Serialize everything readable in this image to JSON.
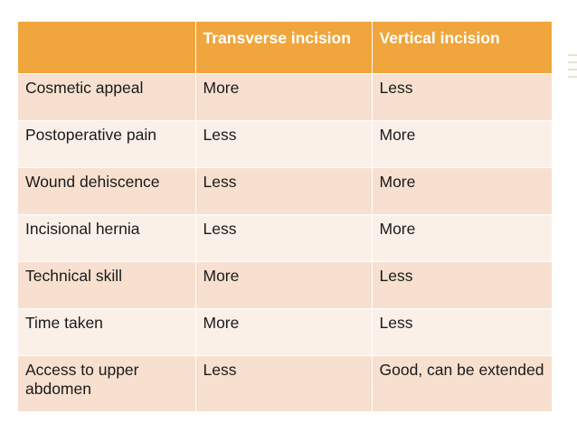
{
  "table": {
    "headers": [
      "",
      "Transverse incision",
      "Vertical incision"
    ],
    "rows": [
      [
        "Cosmetic appeal",
        "More",
        "Less"
      ],
      [
        "Postoperative pain",
        "Less",
        "More"
      ],
      [
        "Wound dehiscence",
        "Less",
        "More"
      ],
      [
        "Incisional hernia",
        "Less",
        "More"
      ],
      [
        "Technical skill",
        "More",
        "Less"
      ],
      [
        "Time taken",
        "More",
        "Less"
      ],
      [
        "Access to upper abdomen",
        "Less",
        "Good, can be extended"
      ]
    ]
  },
  "colors": {
    "header_bg": "#f0a63c",
    "row_odd_bg": "#f7e0cf",
    "row_even_bg": "#fbf0e8",
    "header_text": "#ffffff"
  }
}
